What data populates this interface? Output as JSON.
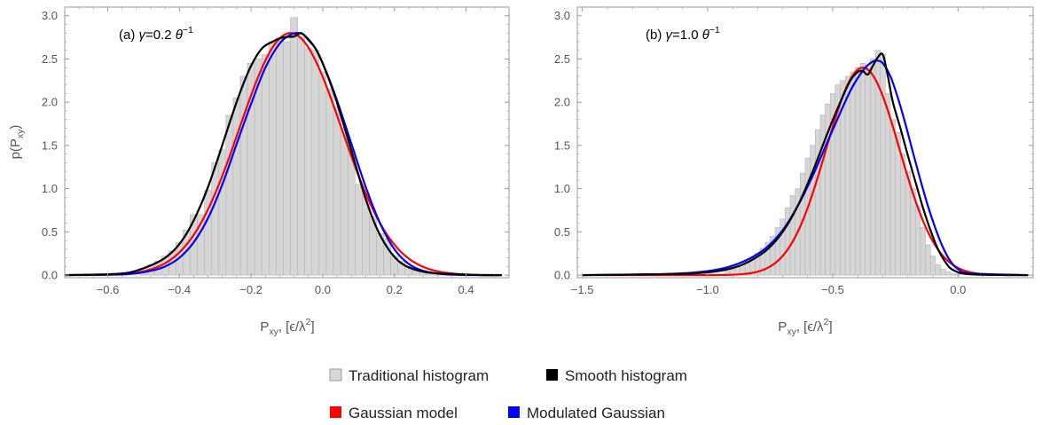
{
  "legend": {
    "traditional": {
      "label": "Traditional histogram",
      "color": "#d9d9d9"
    },
    "smooth": {
      "label": "Smooth histogram",
      "color": "#000000"
    },
    "gaussian": {
      "label": "Gaussian model",
      "color": "#ff0000"
    },
    "modulated": {
      "label": "Modulated Gaussian",
      "color": "#0000ff"
    }
  },
  "chart_data": [
    {
      "type": "bar",
      "panel_label": "(a) γ=0.2 θ⁻¹",
      "xlabel": "Pxy, [ϵ/λ²]",
      "ylabel": "p(Pxy)",
      "xlim": [
        -0.72,
        0.52
      ],
      "ylim": [
        -0.03,
        3.1
      ],
      "xticks": [
        -0.6,
        -0.4,
        -0.2,
        0.0,
        0.2,
        0.4
      ],
      "xticklabels": [
        "−0.6",
        "−0.4",
        "−0.2",
        "0.0",
        "0.2",
        "0.4"
      ],
      "yticks": [
        0.0,
        0.5,
        1.0,
        1.5,
        2.0,
        2.5,
        3.0
      ],
      "yticklabels": [
        "0.0",
        "0.5",
        "1.0",
        "1.5",
        "2.0",
        "2.5",
        "3.0"
      ],
      "bar_width": 0.02,
      "bars": {
        "x": [
          -0.5,
          -0.48,
          -0.46,
          -0.44,
          -0.42,
          -0.4,
          -0.38,
          -0.36,
          -0.34,
          -0.32,
          -0.3,
          -0.28,
          -0.26,
          -0.24,
          -0.22,
          -0.2,
          -0.18,
          -0.16,
          -0.14,
          -0.12,
          -0.1,
          -0.08,
          -0.06,
          -0.04,
          -0.02,
          0.0,
          0.02,
          0.04,
          0.06,
          0.08,
          0.1,
          0.12,
          0.14,
          0.16,
          0.18,
          0.2,
          0.22,
          0.24,
          0.26,
          0.28,
          0.3,
          0.32,
          0.34
        ],
        "values": [
          0.08,
          0.12,
          0.16,
          0.22,
          0.28,
          0.38,
          0.52,
          0.7,
          0.7,
          0.98,
          1.3,
          1.45,
          1.85,
          2.05,
          2.3,
          2.45,
          2.5,
          2.55,
          2.7,
          2.75,
          2.7,
          2.98,
          2.75,
          2.62,
          2.6,
          2.35,
          2.15,
          1.95,
          1.7,
          1.45,
          1.05,
          0.95,
          0.68,
          0.48,
          0.42,
          0.22,
          0.16,
          0.1,
          0.07,
          0.05,
          0.03,
          0.02,
          0.01
        ]
      },
      "series": [
        {
          "name": "Smooth histogram",
          "color": "#000000",
          "x": [
            -0.72,
            -0.6,
            -0.54,
            -0.5,
            -0.47,
            -0.44,
            -0.41,
            -0.38,
            -0.35,
            -0.32,
            -0.29,
            -0.26,
            -0.23,
            -0.2,
            -0.17,
            -0.14,
            -0.11,
            -0.08,
            -0.06,
            -0.04,
            -0.02,
            0.0,
            0.03,
            0.06,
            0.09,
            0.12,
            0.15,
            0.18,
            0.21,
            0.24,
            0.28,
            0.32,
            0.38,
            0.44,
            0.5
          ],
          "y": [
            0.0,
            0.01,
            0.03,
            0.08,
            0.13,
            0.2,
            0.31,
            0.48,
            0.72,
            1.02,
            1.38,
            1.76,
            2.12,
            2.42,
            2.62,
            2.7,
            2.75,
            2.76,
            2.8,
            2.72,
            2.62,
            2.45,
            2.12,
            1.72,
            1.3,
            0.88,
            0.55,
            0.32,
            0.17,
            0.09,
            0.04,
            0.02,
            0.01,
            0.0,
            0.0
          ]
        },
        {
          "name": "Gaussian model",
          "color": "#ff0000",
          "mean": -0.09,
          "sd": 0.1425,
          "amp": 2.8,
          "x_range": [
            -0.72,
            0.5
          ]
        },
        {
          "name": "Modulated Gaussian",
          "color": "#0000ff",
          "x": [
            -0.72,
            -0.55,
            -0.48,
            -0.44,
            -0.4,
            -0.36,
            -0.32,
            -0.28,
            -0.24,
            -0.2,
            -0.16,
            -0.12,
            -0.09,
            -0.07,
            -0.05,
            -0.02,
            0.01,
            0.04,
            0.08,
            0.12,
            0.16,
            0.2,
            0.24,
            0.28,
            0.34,
            0.42,
            0.5
          ],
          "y": [
            0.0,
            0.01,
            0.05,
            0.1,
            0.2,
            0.38,
            0.66,
            1.05,
            1.52,
            1.98,
            2.4,
            2.68,
            2.78,
            2.8,
            2.77,
            2.62,
            2.35,
            2.02,
            1.52,
            1.02,
            0.6,
            0.3,
            0.13,
            0.05,
            0.01,
            0.0,
            0.0
          ]
        }
      ]
    },
    {
      "type": "bar",
      "panel_label": "(b) γ=1.0 θ⁻¹",
      "xlabel": "Pxy, [ϵ/λ²]",
      "ylabel": "",
      "xlim": [
        -1.52,
        0.3
      ],
      "ylim": [
        -0.03,
        3.1
      ],
      "xticks": [
        -1.5,
        -1.0,
        -0.5,
        0.0
      ],
      "xticklabels": [
        "−1.5",
        "−1.0",
        "−0.5",
        "0.0"
      ],
      "yticks": [
        0.0,
        0.5,
        1.0,
        1.5,
        2.0,
        2.5,
        3.0
      ],
      "yticklabels": [
        "0.0",
        "0.5",
        "1.0",
        "1.5",
        "2.0",
        "2.5",
        "3.0"
      ],
      "bar_width": 0.02,
      "bars": {
        "x": [
          -0.92,
          -0.9,
          -0.88,
          -0.86,
          -0.84,
          -0.82,
          -0.8,
          -0.78,
          -0.76,
          -0.74,
          -0.72,
          -0.7,
          -0.68,
          -0.66,
          -0.64,
          -0.62,
          -0.6,
          -0.58,
          -0.56,
          -0.54,
          -0.52,
          -0.5,
          -0.48,
          -0.46,
          -0.44,
          -0.42,
          -0.4,
          -0.38,
          -0.36,
          -0.34,
          -0.32,
          -0.3,
          -0.28,
          -0.26,
          -0.24,
          -0.22,
          -0.2,
          -0.18,
          -0.16,
          -0.14,
          -0.12,
          -0.1,
          -0.08,
          -0.06,
          -0.04,
          -0.02,
          0.0
        ],
        "values": [
          0.05,
          0.07,
          0.1,
          0.12,
          0.16,
          0.2,
          0.25,
          0.31,
          0.38,
          0.45,
          0.55,
          0.65,
          0.78,
          0.92,
          1.0,
          1.18,
          1.35,
          1.5,
          1.68,
          1.85,
          1.98,
          2.1,
          2.2,
          2.25,
          2.3,
          2.35,
          2.4,
          2.45,
          2.4,
          2.5,
          2.6,
          2.55,
          2.1,
          1.8,
          1.65,
          1.4,
          1.2,
          1.0,
          0.8,
          0.55,
          0.35,
          0.22,
          0.12,
          0.07,
          0.04,
          0.02,
          0.01
        ]
      },
      "series": [
        {
          "name": "Smooth histogram",
          "color": "#000000",
          "x": [
            -1.5,
            -1.2,
            -1.05,
            -0.95,
            -0.88,
            -0.82,
            -0.76,
            -0.7,
            -0.64,
            -0.58,
            -0.52,
            -0.47,
            -0.43,
            -0.4,
            -0.38,
            -0.36,
            -0.34,
            -0.32,
            -0.3,
            -0.28,
            -0.26,
            -0.23,
            -0.2,
            -0.17,
            -0.14,
            -0.11,
            -0.08,
            -0.05,
            -0.02,
            0.05,
            0.28
          ],
          "y": [
            0.0,
            0.01,
            0.02,
            0.05,
            0.1,
            0.18,
            0.3,
            0.5,
            0.8,
            1.2,
            1.65,
            2.0,
            2.25,
            2.35,
            2.36,
            2.32,
            2.42,
            2.52,
            2.55,
            2.3,
            2.0,
            1.7,
            1.38,
            1.08,
            0.78,
            0.52,
            0.3,
            0.15,
            0.06,
            0.01,
            0.0
          ]
        },
        {
          "name": "Gaussian model",
          "color": "#ff0000",
          "mean": -0.38,
          "sd": 0.1467,
          "amp": 2.4,
          "x_range": [
            -1.5,
            0.28
          ]
        },
        {
          "name": "Modulated Gaussian",
          "color": "#0000ff",
          "x": [
            -1.5,
            -1.2,
            -1.05,
            -0.95,
            -0.88,
            -0.82,
            -0.76,
            -0.7,
            -0.64,
            -0.58,
            -0.52,
            -0.47,
            -0.43,
            -0.4,
            -0.37,
            -0.34,
            -0.32,
            -0.3,
            -0.27,
            -0.24,
            -0.21,
            -0.18,
            -0.15,
            -0.12,
            -0.09,
            -0.06,
            -0.03,
            0.0,
            0.05,
            0.28
          ],
          "y": [
            0.0,
            0.01,
            0.03,
            0.07,
            0.13,
            0.21,
            0.33,
            0.52,
            0.8,
            1.15,
            1.55,
            1.88,
            2.13,
            2.28,
            2.4,
            2.47,
            2.48,
            2.45,
            2.3,
            2.05,
            1.75,
            1.42,
            1.1,
            0.8,
            0.54,
            0.32,
            0.16,
            0.07,
            0.02,
            0.0
          ]
        }
      ]
    }
  ]
}
